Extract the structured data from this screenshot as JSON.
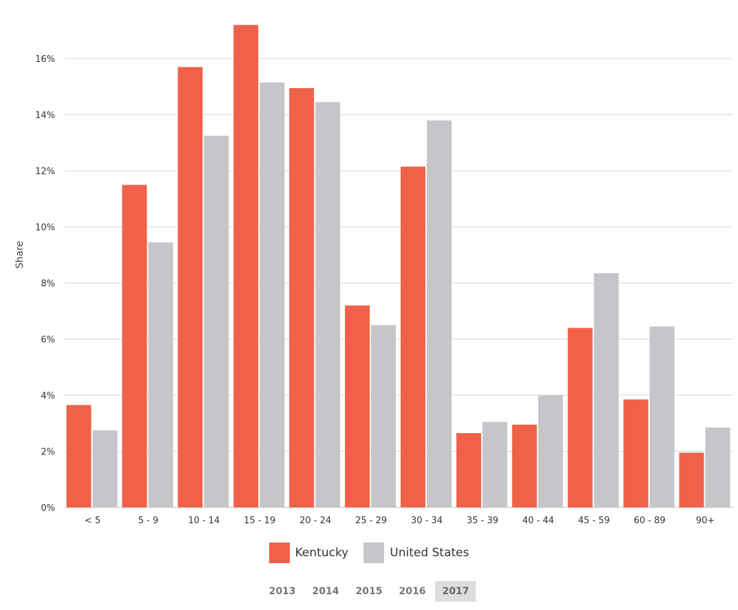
{
  "chart_data": {
    "type": "bar",
    "title": "",
    "xlabel": "",
    "ylabel": "Share",
    "ylim": [
      0,
      17.6
    ],
    "yticks": [
      "0%",
      "2%",
      "4%",
      "6%",
      "8%",
      "10%",
      "12%",
      "14%",
      "16%"
    ],
    "grid": true,
    "categories": [
      "< 5",
      "5 - 9",
      "10 - 14",
      "15 - 19",
      "20 - 24",
      "25 - 29",
      "30 - 34",
      "35 - 39",
      "40 - 44",
      "45 - 59",
      "60 - 89",
      "90+"
    ],
    "series": [
      {
        "name": "Kentucky",
        "color": "#ef6249",
        "values": [
          3.65,
          11.5,
          15.7,
          17.2,
          14.95,
          7.2,
          12.15,
          2.65,
          2.95,
          6.4,
          3.85,
          1.95
        ]
      },
      {
        "name": "United States",
        "color": "#c5c6c9",
        "values": [
          2.75,
          9.45,
          13.25,
          15.15,
          14.45,
          6.5,
          13.8,
          3.05,
          4.0,
          8.35,
          6.45,
          2.85
        ]
      }
    ],
    "legend_position": "bottom"
  },
  "years": {
    "items": [
      "2013",
      "2014",
      "2015",
      "2016",
      "2017"
    ],
    "selected": "2017"
  }
}
